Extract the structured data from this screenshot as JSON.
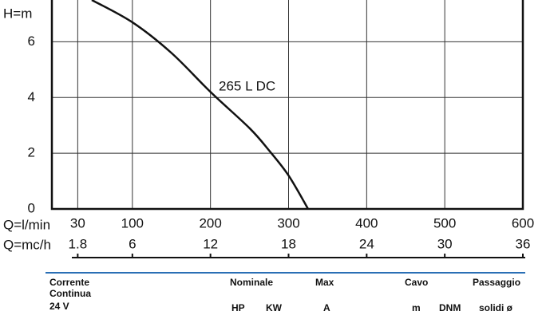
{
  "chart_data": {
    "type": "line",
    "y_label": "H=m",
    "x_label": "Q=l/min",
    "x2_label": "Q=mc/h",
    "x": [
      48,
      100,
      150,
      200,
      250,
      275,
      300,
      325
    ],
    "series": [
      {
        "name": "265 L DC",
        "color": "#111111",
        "values": [
          7.5,
          6.7,
          5.6,
          4.2,
          2.9,
          2.1,
          1.2,
          0
        ]
      }
    ],
    "xlim": [
      0,
      600
    ],
    "xticks": [
      30,
      100,
      200,
      300,
      400,
      500,
      600
    ],
    "x2lim": [
      0,
      36
    ],
    "x2ticks": [
      1.8,
      6,
      12,
      18,
      24,
      30,
      36
    ],
    "ylim": [
      0,
      7.5
    ],
    "yticks": [
      0,
      2,
      4,
      6
    ],
    "grid": true
  },
  "table": {
    "left": [
      "Corrente",
      "Continua",
      "24 V"
    ],
    "headers": [
      "Nominale",
      "Max",
      "Cavo",
      "Passaggio"
    ],
    "units": [
      "HP",
      "KW",
      "A",
      "m",
      "DNM",
      "solidi ø"
    ]
  }
}
